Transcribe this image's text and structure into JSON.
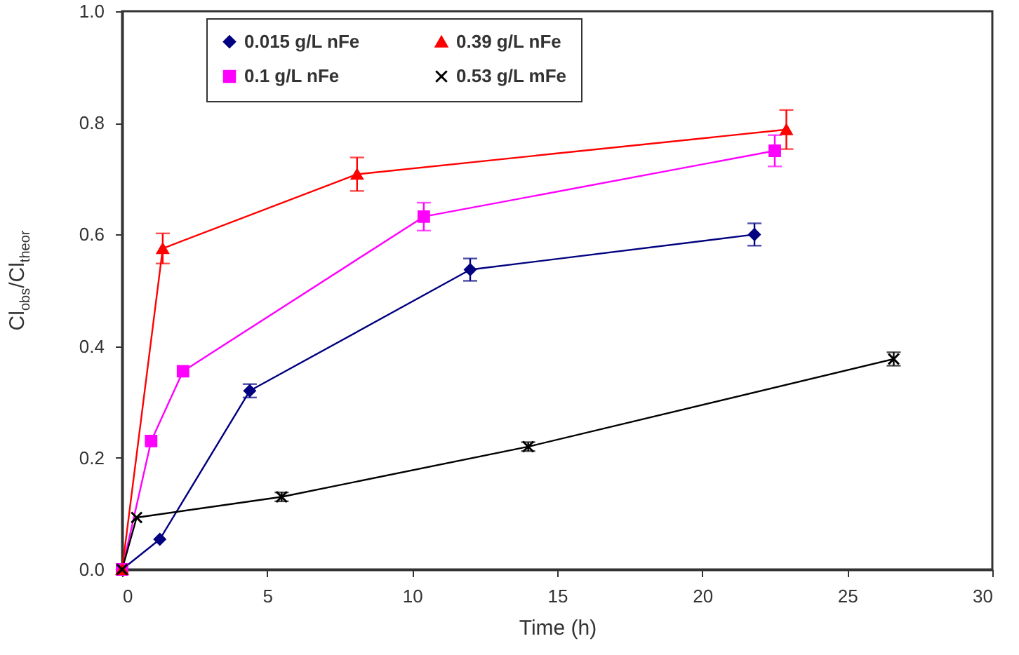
{
  "chart_data": {
    "type": "line",
    "xlabel": "Time (h)",
    "ylabel": "Cl$_{obs}$/Cl$_{theor}$",
    "xlim": [
      0,
      30
    ],
    "xticks": [
      0,
      5,
      10,
      15,
      20,
      25,
      30
    ],
    "ylim": [
      0,
      1
    ],
    "yticks": [
      {
        "value": 0,
        "label": "0.0"
      },
      0.2,
      0.4,
      0.6,
      0.8,
      {
        "value": 1,
        "label": "1.0"
      }
    ],
    "grid": false,
    "legend": "top",
    "series": [
      {
        "name": "0.015 g/L nFe",
        "color": "#000080",
        "marker": "diamond",
        "x": [
          0,
          1.3,
          4.4,
          12,
          21.8
        ],
        "values": [
          0,
          0.054,
          0.32,
          0.537,
          0.6
        ],
        "errors": [
          null,
          null,
          0.012,
          0.02,
          0.02
        ]
      },
      {
        "name": "0.1 g/L nFe",
        "color": "#ff00ff",
        "marker": "square",
        "x": [
          0,
          1,
          2.1,
          10.4,
          22.5
        ],
        "values": [
          0,
          0.23,
          0.355,
          0.632,
          0.75
        ],
        "errors": [
          null,
          null,
          null,
          0.025,
          0.028
        ]
      },
      {
        "name": "0.39 g/L nFe",
        "color": "#ff0000",
        "marker": "triangle",
        "x": [
          0,
          1.4,
          8.1,
          22.9
        ],
        "values": [
          0,
          0.575,
          0.708,
          0.788
        ],
        "errors": [
          null,
          0.027,
          0.03,
          0.035
        ]
      },
      {
        "name": "0.53 g/L mFe",
        "color": "#000000",
        "marker": "cross",
        "x": [
          0,
          0.5,
          5.5,
          14,
          26.6
        ],
        "values": [
          0,
          0.093,
          0.13,
          0.22,
          0.377
        ],
        "errors": [
          null,
          null,
          0.008,
          0.008,
          0.012
        ]
      }
    ]
  }
}
